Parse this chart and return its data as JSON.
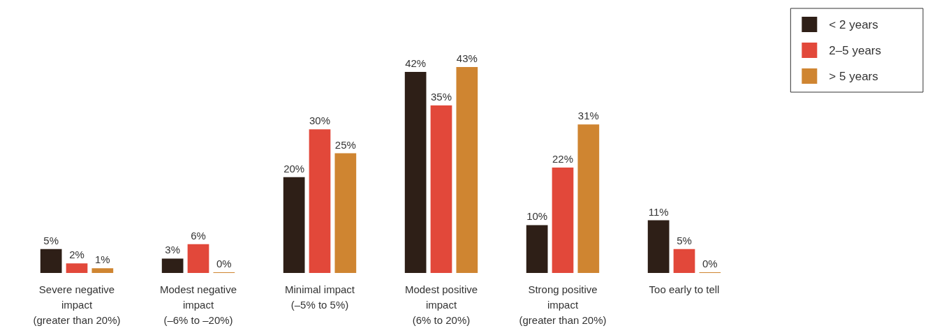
{
  "chart_data": {
    "type": "bar",
    "categories": [
      "Severe negative\nimpact\n(greater than 20%)",
      "Modest negative\nimpact\n(–6% to –20%)",
      "Minimal impact\n(–5% to 5%)",
      "Modest positive\nimpact\n(6% to 20%)",
      "Strong positive\nimpact\n(greater than 20%)",
      "Too early to tell"
    ],
    "series": [
      {
        "name": "< 2 years",
        "color": "#2e1f17",
        "values": [
          5,
          3,
          20,
          42,
          10,
          11
        ],
        "value_labels": [
          "5%",
          "3%",
          "20%",
          "42%",
          "10%",
          "11%"
        ]
      },
      {
        "name": "2–5 years",
        "color": "#e2483a",
        "values": [
          2,
          6,
          30,
          35,
          22,
          5
        ],
        "value_labels": [
          "2%",
          "6%",
          "30%",
          "35%",
          "22%",
          "5%"
        ]
      },
      {
        "name": "> 5 years",
        "color": "#cf8531",
        "values": [
          1,
          0,
          25,
          43,
          31,
          0
        ],
        "value_labels": [
          "1%",
          "0%",
          "25%",
          "43%",
          "31%",
          "0%"
        ]
      }
    ],
    "legend": "top right"
  }
}
